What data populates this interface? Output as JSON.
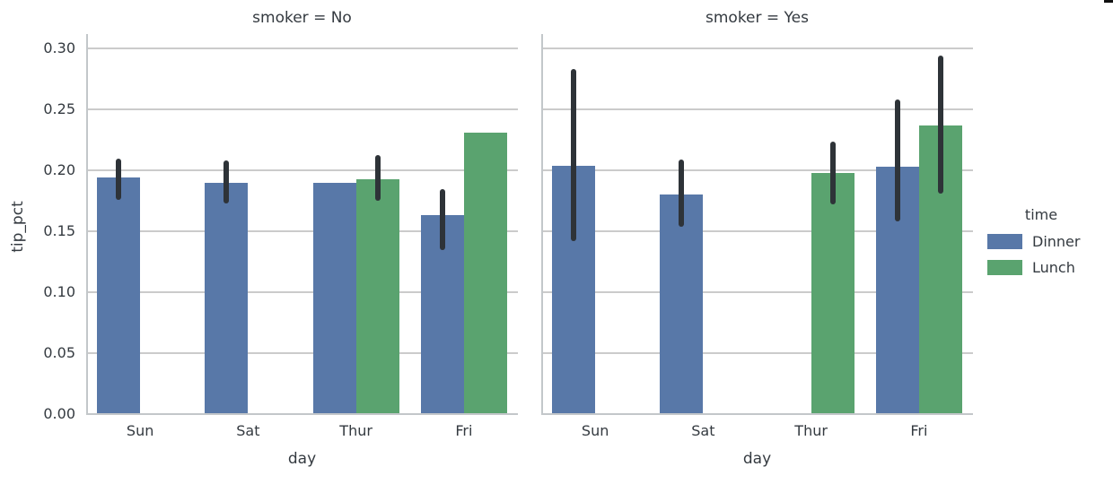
{
  "legend": {
    "title": "time",
    "entries": [
      {
        "label": "Dinner",
        "color": "#5878a8"
      },
      {
        "label": "Lunch",
        "color": "#5aa36f"
      }
    ]
  },
  "chart_data": [
    {
      "type": "bar",
      "title": "smoker = No",
      "xlabel": "day",
      "ylabel": "tip_pct",
      "categories": [
        "Sun",
        "Sat",
        "Thur",
        "Fri"
      ],
      "ylim": [
        0,
        0.312
      ],
      "yticks": [
        0.0,
        0.05,
        0.1,
        0.15,
        0.2,
        0.25,
        0.3
      ],
      "grid": true,
      "ci_color": "#2e3338",
      "legend_position": "right-outside",
      "series": [
        {
          "name": "Dinner",
          "color": "#5878a8",
          "values": [
            0.194,
            0.19,
            0.19,
            0.163
          ],
          "ci": [
            [
              0.176,
              0.21
            ],
            [
              0.173,
              0.208
            ],
            null,
            [
              0.135,
              0.185
            ]
          ]
        },
        {
          "name": "Lunch",
          "color": "#5aa36f",
          "values": [
            null,
            null,
            0.193,
            0.231
          ],
          "ci": [
            null,
            null,
            [
              0.175,
              0.213
            ],
            null
          ]
        }
      ]
    },
    {
      "type": "bar",
      "title": "smoker = Yes",
      "xlabel": "day",
      "ylabel": "",
      "categories": [
        "Sun",
        "Sat",
        "Thur",
        "Fri"
      ],
      "ylim": [
        0,
        0.312
      ],
      "yticks": [
        0.0,
        0.05,
        0.1,
        0.15,
        0.2,
        0.25,
        0.3
      ],
      "grid": true,
      "ci_color": "#2e3338",
      "series": [
        {
          "name": "Dinner",
          "color": "#5878a8",
          "values": [
            0.204,
            0.18,
            null,
            0.203
          ],
          "ci": [
            [
              0.142,
              0.283
            ],
            [
              0.154,
              0.209
            ],
            null,
            [
              0.158,
              0.258
            ]
          ]
        },
        {
          "name": "Lunch",
          "color": "#5aa36f",
          "values": [
            null,
            null,
            0.198,
            0.237
          ],
          "ci": [
            null,
            null,
            [
              0.172,
              0.224
            ],
            [
              0.181,
              0.294
            ]
          ]
        }
      ]
    }
  ]
}
